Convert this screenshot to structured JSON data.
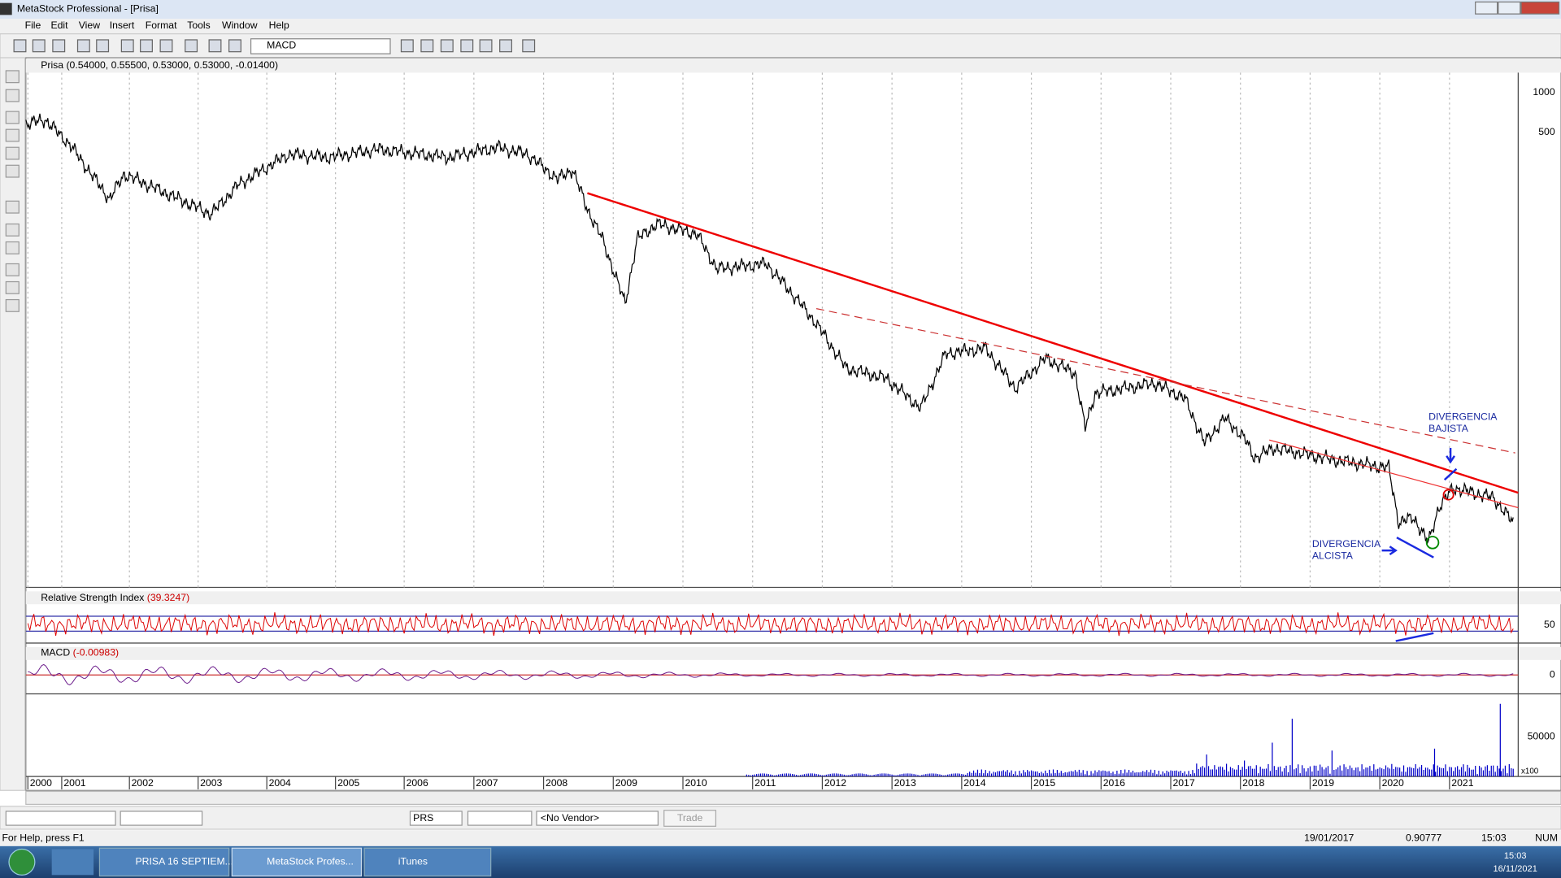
{
  "window": {
    "title": "MetaStock Professional - [Prisa]",
    "menu": [
      "File",
      "Edit",
      "View",
      "Insert",
      "Format",
      "Tools",
      "Window",
      "Help"
    ],
    "toolbar": {
      "indicator": "MACD"
    }
  },
  "panes": {
    "price": {
      "header": "Prisa (0.54000, 0.55500, 0.53000, 0.53000, -0.01400)",
      "axis_labels": [
        "1000",
        "500"
      ],
      "annotations": [
        {
          "lines": [
            "DIVERGENCIA",
            "BAJISTA"
          ]
        },
        {
          "lines": [
            "DIVERGENCIA",
            "ALCISTA"
          ]
        }
      ]
    },
    "rsi": {
      "header": "Relative Strength Index",
      "reading": "(39.3247)",
      "axis_labels": [
        "50"
      ]
    },
    "macd": {
      "header": "MACD",
      "reading": "(-0.00983)",
      "axis_labels": [
        "0"
      ]
    },
    "volume": {
      "axis_labels": [
        "50000",
        "x100"
      ]
    }
  },
  "x_axis": {
    "years": [
      "2000",
      "2001",
      "2002",
      "2003",
      "2004",
      "2005",
      "2006",
      "2007",
      "2008",
      "2009",
      "2010",
      "2011",
      "2012",
      "2013",
      "2014",
      "2015",
      "2016",
      "2017",
      "2018",
      "2019",
      "2020",
      "2021"
    ]
  },
  "bottom_toolbar": {
    "symbol": "PRS",
    "vendor": "<No Vendor>",
    "button": "Trade"
  },
  "status_bar": {
    "help": "For Help, press F1",
    "date": "19/01/2017",
    "value": "0.90777",
    "time": "15:03",
    "mode": "NUM"
  },
  "taskbar": {
    "items": [
      "PRISA 16 SEPTIEM...",
      "MetaStock Profes...",
      "iTunes"
    ],
    "time": "15:03",
    "date": "16/11/2021"
  }
}
